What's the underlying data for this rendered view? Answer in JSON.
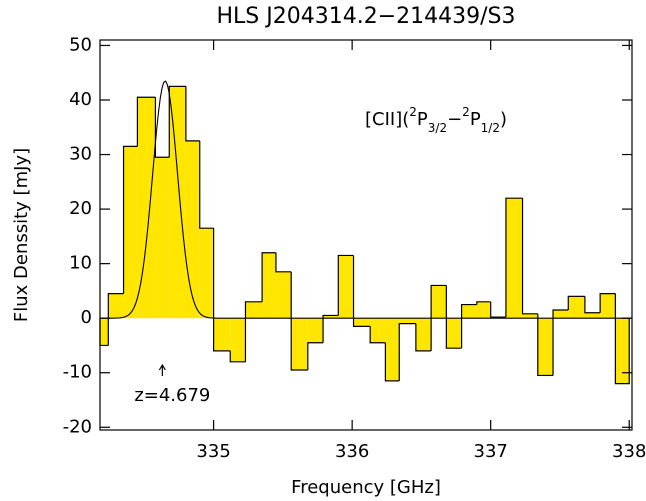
{
  "chart_data": {
    "type": "histogram",
    "title": "HLS J204314.2−214439/S3",
    "x_label": "Frequency [GHz]",
    "y_label": "Flux Denssity [mJy]",
    "bins": [
      334.18,
      334.24,
      334.35,
      334.45,
      334.58,
      334.68,
      334.8,
      334.9,
      335.0,
      335.12,
      335.23,
      335.35,
      335.45,
      335.56,
      335.68,
      335.79,
      335.9,
      336.01,
      336.13,
      336.24,
      336.34,
      336.46,
      336.57,
      336.68,
      336.79,
      336.9,
      337.0,
      337.11,
      337.23,
      337.34,
      337.45,
      337.56,
      337.68,
      337.79,
      337.9,
      338.0
    ],
    "values": [
      -5,
      4.5,
      31.5,
      40.5,
      29.5,
      42.5,
      32.5,
      16.5,
      -6,
      -8,
      3,
      12,
      8.5,
      -9.5,
      -4.5,
      0.5,
      11.5,
      -1.5,
      -4.5,
      -11.5,
      -1,
      -6,
      6,
      -5.5,
      2.5,
      3,
      0.2,
      22,
      0.8,
      -10.5,
      1.5,
      4,
      1,
      4.5,
      -12
    ],
    "color": "#ffe600",
    "fit": {
      "amplitude": 43.5,
      "center": 334.65,
      "sigma": 0.09
    },
    "xlim": [
      334.18,
      338.02
    ],
    "ylim": [
      -20.5,
      51
    ],
    "xticks": [
      335,
      336,
      337,
      338
    ],
    "yticks": [
      -20,
      -10,
      0,
      10,
      20,
      30,
      40,
      50
    ],
    "line_label": [
      {
        "text": "[CII](",
        "shift": "none"
      },
      {
        "text": "2",
        "shift": "sup"
      },
      {
        "text": "P",
        "shift": "none"
      },
      {
        "text": "3/2",
        "shift": "sub"
      },
      {
        "text": "−",
        "shift": "none"
      },
      {
        "text": "2",
        "shift": "sup"
      },
      {
        "text": "P",
        "shift": "none"
      },
      {
        "text": "1/2",
        "shift": "sub"
      },
      {
        "text": ")",
        "shift": "none"
      }
    ],
    "redshift_marker": {
      "x": 334.63,
      "text": "z=4.679"
    }
  }
}
